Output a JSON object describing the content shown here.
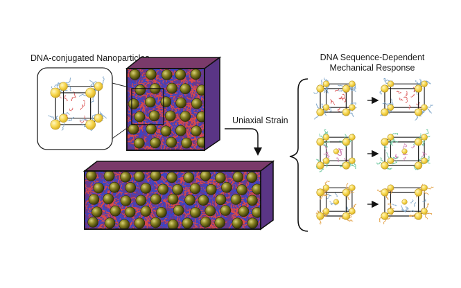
{
  "labels": {
    "nanoparticles": "DNA-conjugated Nanoparticles",
    "strain": "Uniaxial Strain",
    "response_line1": "DNA Sequence-Dependent",
    "response_line2": "Mechanical Response"
  },
  "colors": {
    "particle_gold": "#6f6a1c",
    "dna_red": "#d94a4a",
    "dna_blue": "#3a46c8",
    "corner_yellow": "#f6d54a",
    "strand_blue": "#7ea6c9",
    "strand_green": "#6fc7a0",
    "strand_orange": "#e3a34a"
  },
  "response_rows": [
    {
      "strand_color": "blue",
      "arrow": "right-arrow"
    },
    {
      "strand_color": "green",
      "arrow": "right-arrow"
    },
    {
      "strand_color": "orange",
      "arrow": "right-arrow"
    }
  ]
}
